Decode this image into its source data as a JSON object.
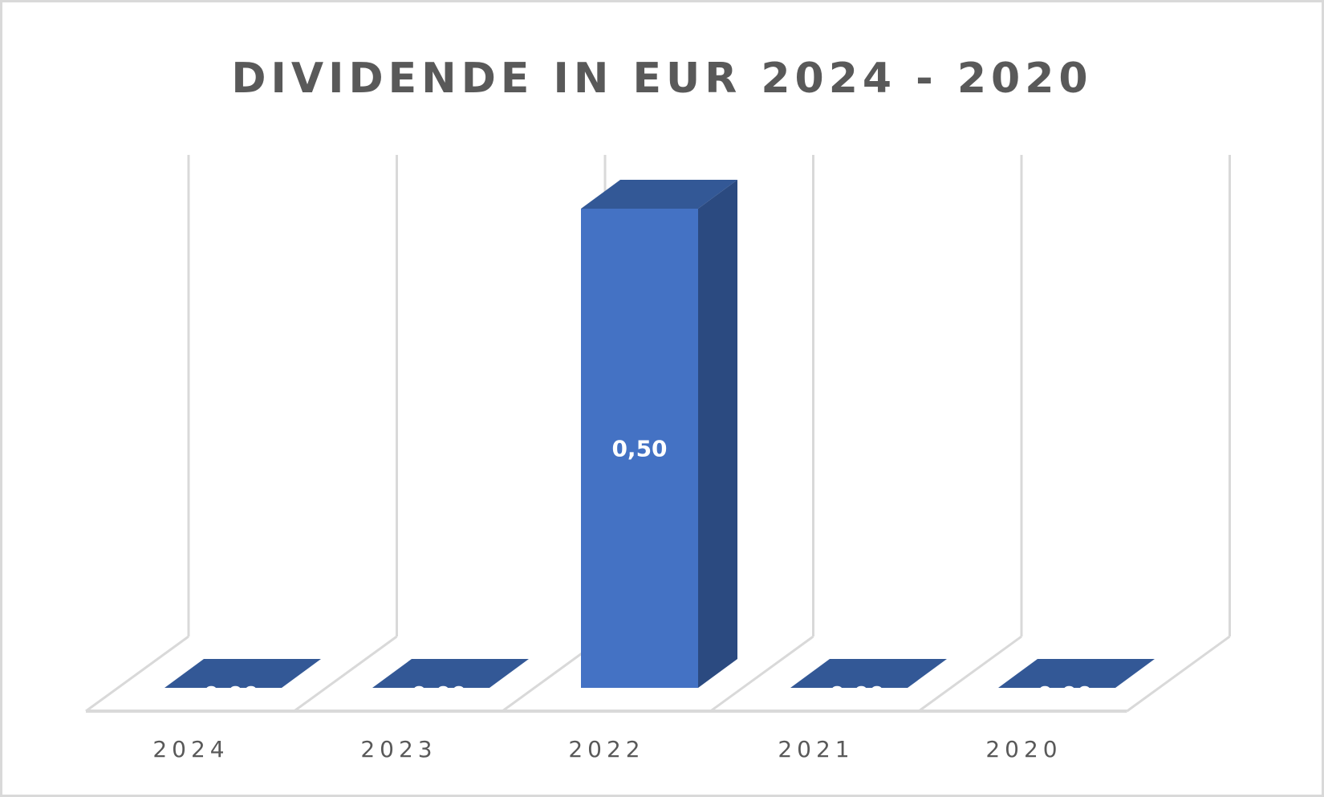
{
  "chart_data": {
    "type": "bar",
    "style": "3d-column",
    "title": "DIVIDENDE IN EUR 2024 - 2020",
    "categories": [
      "2024",
      "2023",
      "2022",
      "2021",
      "2020"
    ],
    "values": [
      0.0,
      0.0,
      0.5,
      0.0,
      0.0
    ],
    "value_labels": [
      "0,00",
      "0,00",
      "0,50",
      "0,00",
      "0,00"
    ],
    "xlabel": "",
    "ylabel": "",
    "ylim": [
      0,
      0.5
    ],
    "grid": true,
    "legend": "none",
    "colors": {
      "bar_front": "#4472C4",
      "bar_top": "#335896",
      "bar_side": "#2B4A80",
      "grid": "#D9D9D9",
      "text": "#595959"
    }
  },
  "title": "DIVIDENDE IN EUR 2024 - 2020"
}
